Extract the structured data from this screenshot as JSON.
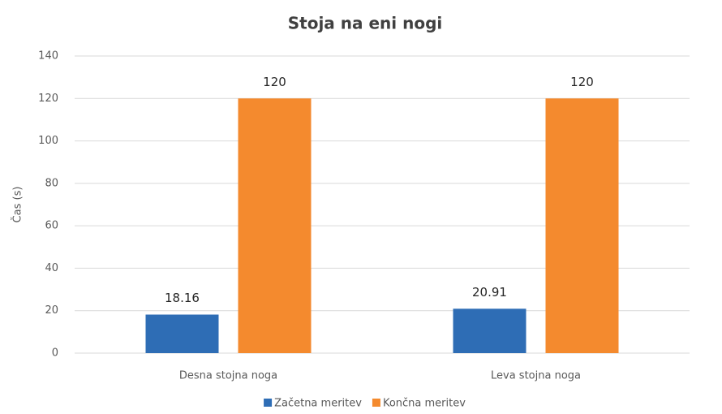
{
  "chart_data": {
    "type": "bar",
    "title": "Stoja na eni nogi",
    "ylabel": "Čas (s)",
    "categories": [
      "Desna stojna noga",
      "Leva stojna noga"
    ],
    "series": [
      {
        "name": "Začetna meritev",
        "color": "#2e6db5",
        "values": [
          18.16,
          20.91
        ]
      },
      {
        "name": "Končna meritev",
        "color": "#f48a2e",
        "values": [
          120,
          120
        ]
      }
    ],
    "ylim": [
      0,
      140
    ],
    "yticks": [
      0,
      20,
      40,
      60,
      80,
      100,
      120,
      140
    ],
    "grid": true,
    "legend": "bottom"
  }
}
